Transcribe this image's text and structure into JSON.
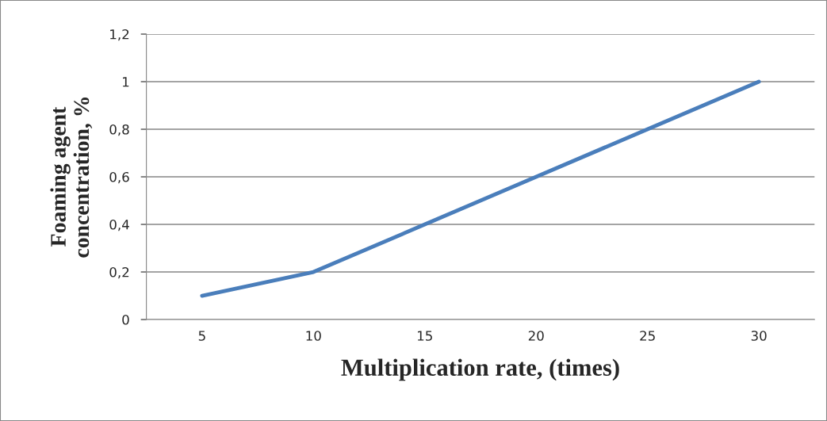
{
  "chart_data": {
    "type": "line",
    "xlabel": "Multiplication rate, (times)",
    "ylabel": "Foaming agent\nconcentration, %",
    "categories": [
      "5",
      "10",
      "15",
      "20",
      "25",
      "30"
    ],
    "series": [
      {
        "color": "#4a7ebb",
        "values": [
          0.1,
          0.2,
          0.4,
          0.6,
          0.8,
          1.0
        ]
      }
    ],
    "ylim": [
      0,
      1.2
    ],
    "yticks": [
      0,
      {
        "value": 0.2,
        "label": "0,2"
      },
      {
        "value": 0.4,
        "label": "0,4"
      },
      {
        "value": 0.6,
        "label": "0,6"
      },
      {
        "value": 0.8,
        "label": "0,8"
      },
      1,
      {
        "value": 1.2,
        "label": "1,2"
      }
    ],
    "grid": "y",
    "legend": false,
    "marker": "none",
    "line_style": "solid"
  }
}
